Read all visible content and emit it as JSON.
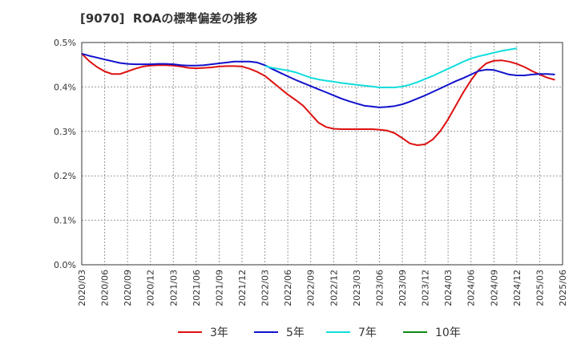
{
  "chart_data": {
    "type": "line",
    "title": "[9070]  ROAの標準偏差の推移",
    "xlabel": "",
    "ylabel": "",
    "x_ticks": [
      "2020/03",
      "2020/06",
      "2020/09",
      "2020/12",
      "2021/03",
      "2021/06",
      "2021/09",
      "2021/12",
      "2022/03",
      "2022/06",
      "2022/09",
      "2022/12",
      "2023/03",
      "2023/06",
      "2023/09",
      "2023/12",
      "2024/03",
      "2024/06",
      "2024/09",
      "2024/12",
      "2025/03",
      "2025/06"
    ],
    "y_ticks": [
      "0.0%",
      "0.1%",
      "0.2%",
      "0.3%",
      "0.4%",
      "0.5%"
    ],
    "ylim": [
      0,
      0.5
    ],
    "grid": true,
    "legend_position": "bottom",
    "series": [
      {
        "name": "3年",
        "color": "#dd1111",
        "start": "2020/03",
        "values": [
          0.475,
          0.458,
          0.445,
          0.435,
          0.429,
          0.429,
          0.435,
          0.441,
          0.446,
          0.448,
          0.449,
          0.449,
          0.448,
          0.446,
          0.443,
          0.442,
          0.443,
          0.444,
          0.446,
          0.447,
          0.447,
          0.446,
          0.441,
          0.434,
          0.425,
          0.411,
          0.397,
          0.383,
          0.371,
          0.358,
          0.339,
          0.32,
          0.31,
          0.306,
          0.305,
          0.305,
          0.305,
          0.305,
          0.305,
          0.304,
          0.302,
          0.296,
          0.285,
          0.273,
          0.269,
          0.271,
          0.282,
          0.301,
          0.327,
          0.358,
          0.388,
          0.415,
          0.438,
          0.453,
          0.459,
          0.46,
          0.457,
          0.452,
          0.445,
          0.436,
          0.428,
          0.421,
          0.416
        ]
      },
      {
        "name": "5年",
        "color": "#1111cc",
        "start": "2020/03",
        "values": [
          0.475,
          0.47,
          0.466,
          0.462,
          0.458,
          0.454,
          0.452,
          0.451,
          0.451,
          0.451,
          0.452,
          0.452,
          0.451,
          0.449,
          0.448,
          0.448,
          0.449,
          0.451,
          0.453,
          0.455,
          0.457,
          0.457,
          0.457,
          0.455,
          0.449,
          0.44,
          0.432,
          0.424,
          0.416,
          0.409,
          0.402,
          0.395,
          0.388,
          0.381,
          0.374,
          0.368,
          0.363,
          0.358,
          0.356,
          0.354,
          0.355,
          0.357,
          0.361,
          0.367,
          0.374,
          0.381,
          0.389,
          0.397,
          0.405,
          0.413,
          0.42,
          0.428,
          0.436,
          0.439,
          0.438,
          0.433,
          0.428,
          0.426,
          0.426,
          0.428,
          0.429,
          0.429,
          0.428
        ]
      },
      {
        "name": "7年",
        "color": "#11dddd",
        "start": "2022/03",
        "values": [
          0.447,
          0.443,
          0.44,
          0.437,
          0.433,
          0.427,
          0.421,
          0.417,
          0.414,
          0.412,
          0.409,
          0.407,
          0.405,
          0.403,
          0.401,
          0.399,
          0.399,
          0.399,
          0.401,
          0.405,
          0.411,
          0.418,
          0.425,
          0.433,
          0.441,
          0.449,
          0.457,
          0.464,
          0.469,
          0.473,
          0.477,
          0.481,
          0.484,
          0.487
        ]
      },
      {
        "name": "10年",
        "color": "#118811",
        "start": "2020/03",
        "values": []
      }
    ]
  }
}
